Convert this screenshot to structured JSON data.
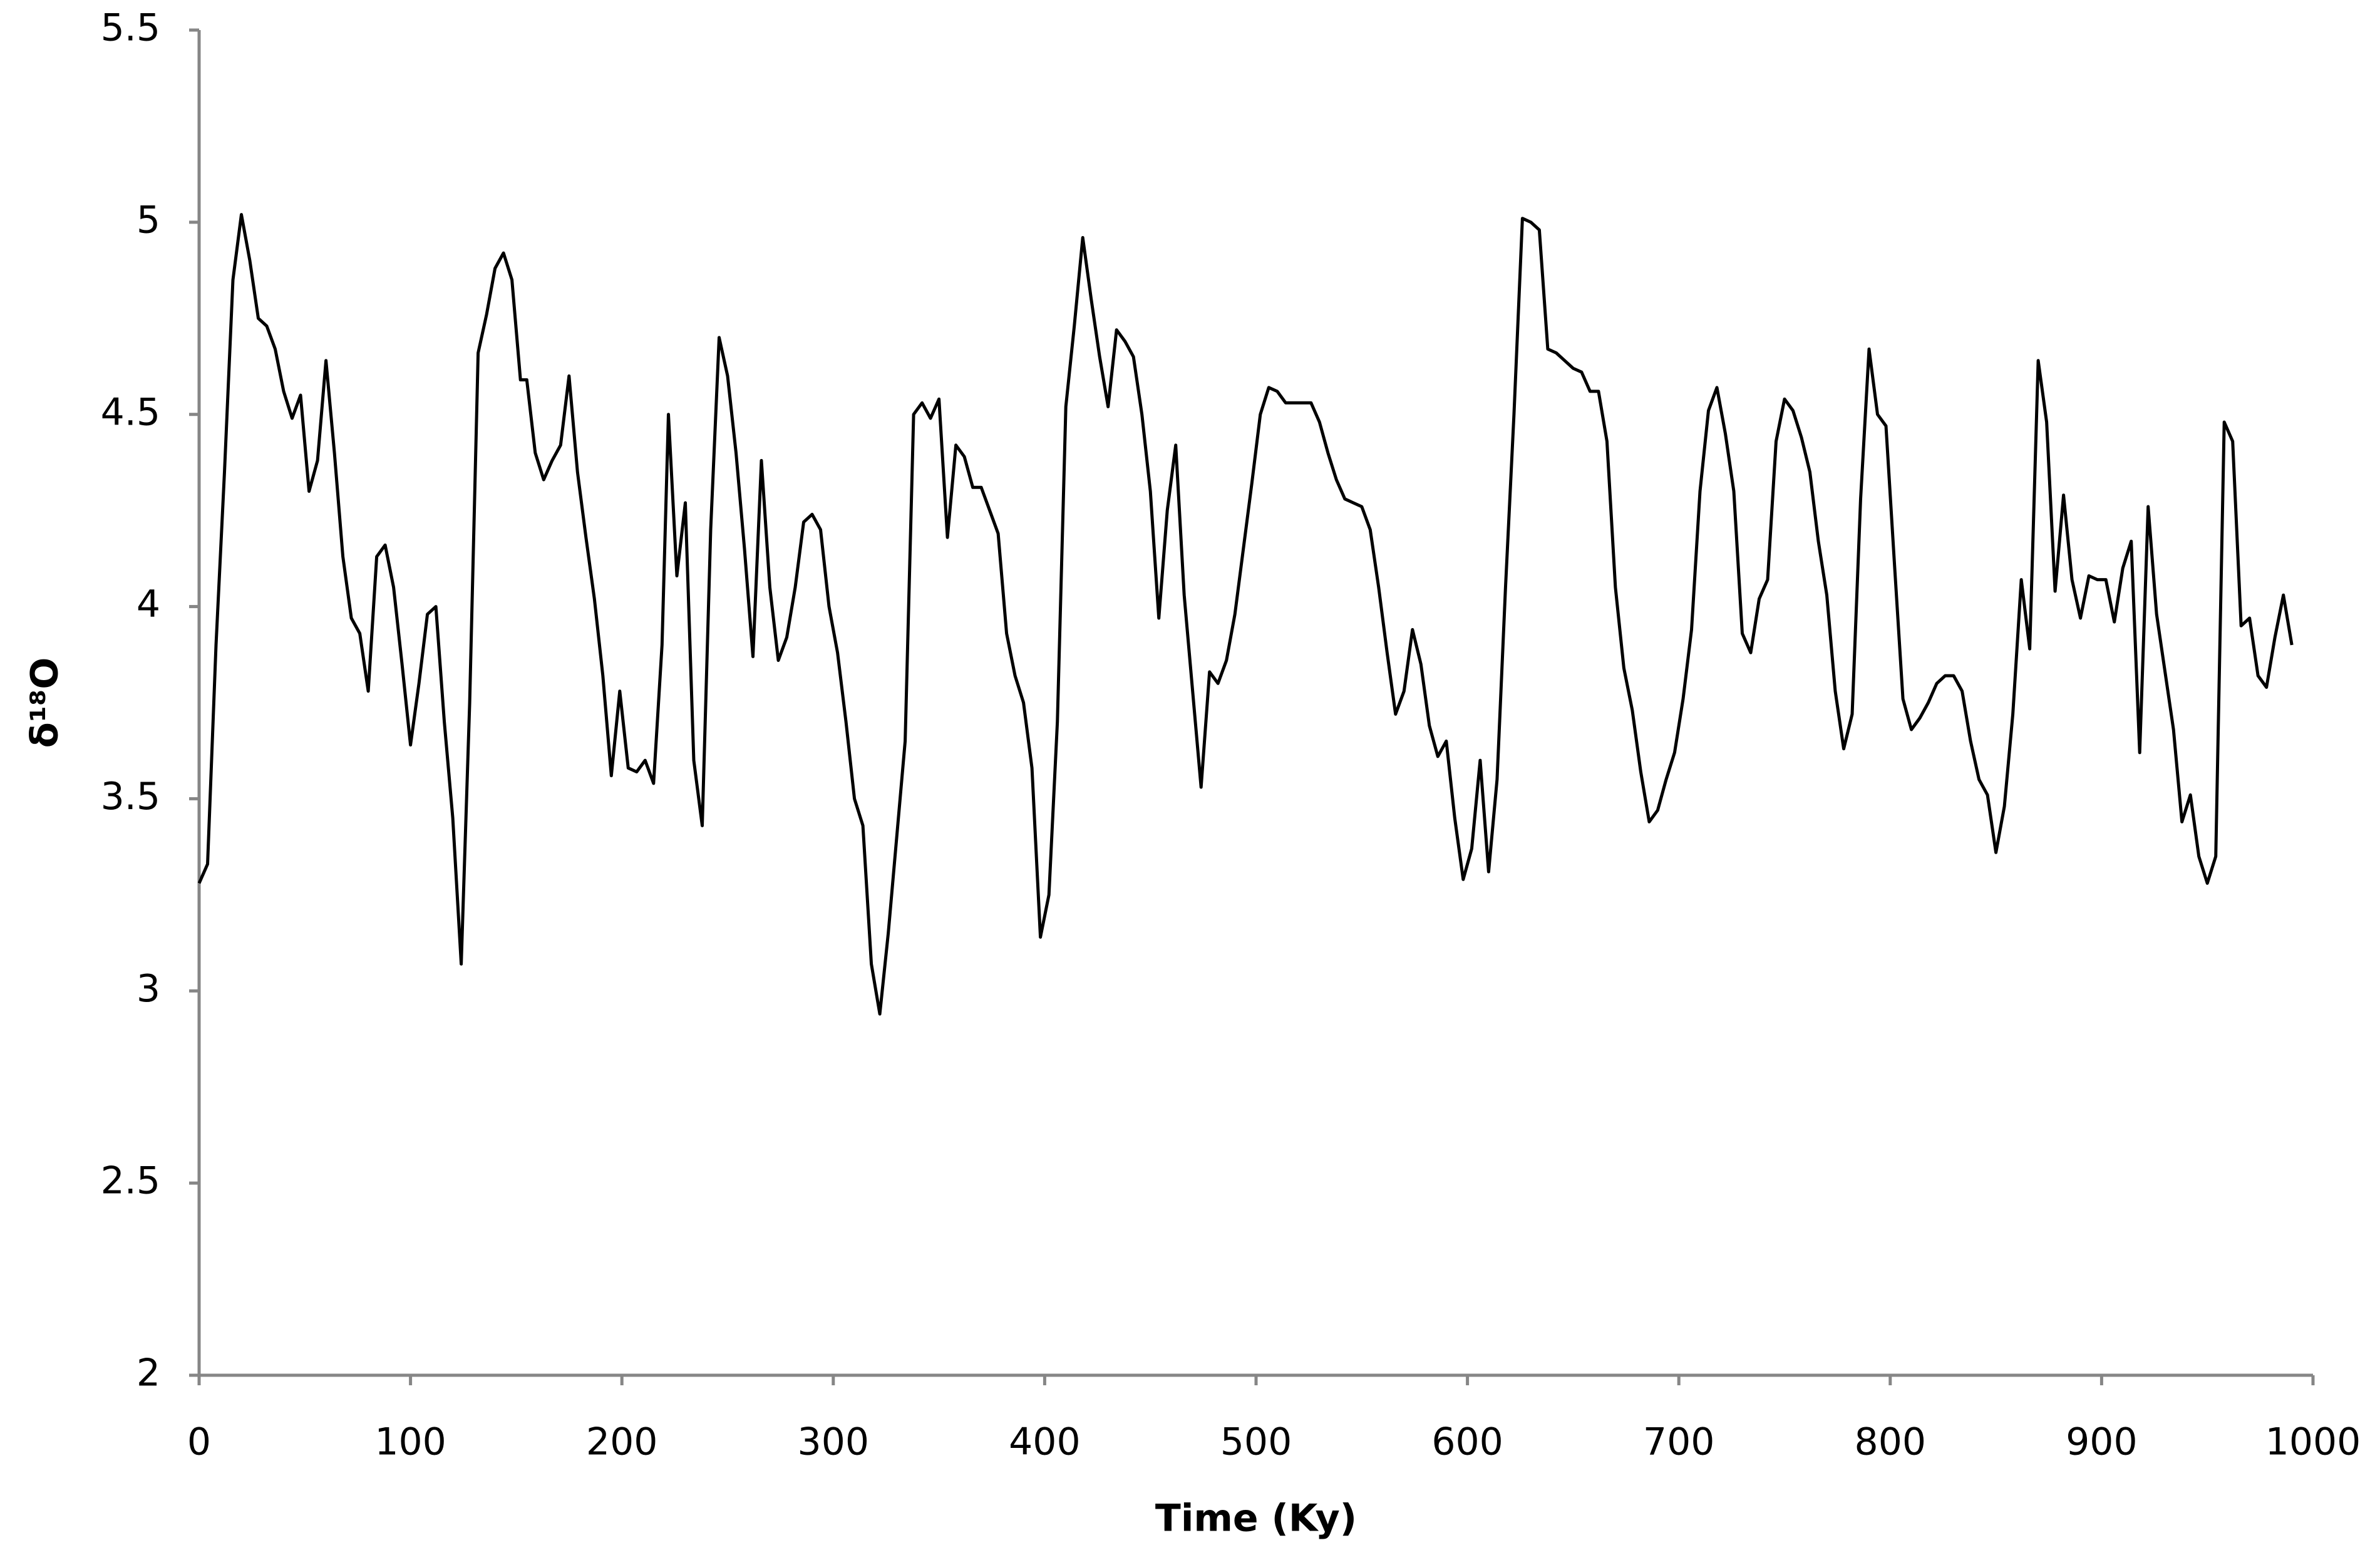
{
  "chart_data": {
    "type": "line",
    "xlabel": "Time (Ky)",
    "ylabel": "δ¹⁸O",
    "color": "#000000",
    "grid": false,
    "xlim": [
      0,
      1000
    ],
    "xticks": [
      0,
      100,
      200,
      300,
      400,
      500,
      600,
      700,
      800,
      900,
      1000
    ],
    "ylim": [
      2,
      5.5
    ],
    "yticks": [
      2,
      2.5,
      3,
      3.5,
      4,
      4.5,
      5,
      5.5
    ],
    "x": [
      0,
      4,
      8,
      12,
      16,
      20,
      24,
      28,
      32,
      36,
      40,
      44,
      48,
      52,
      56,
      60,
      64,
      68,
      72,
      76,
      80,
      84,
      88,
      92,
      96,
      100,
      104,
      108,
      112,
      116,
      120,
      124,
      128,
      132,
      136,
      140,
      144,
      148,
      152,
      155,
      159,
      163,
      167,
      171,
      175,
      179,
      183,
      187,
      191,
      195,
      199,
      203,
      207,
      211,
      215,
      219,
      222,
      226,
      230,
      234,
      238,
      242,
      246,
      250,
      254,
      258,
      262,
      266,
      270,
      274,
      278,
      282,
      286,
      290,
      294,
      298,
      302,
      306,
      310,
      314,
      318,
      322,
      326,
      330,
      334,
      338,
      342,
      346,
      350,
      354,
      358,
      362,
      366,
      370,
      374,
      378,
      382,
      386,
      390,
      394,
      398,
      402,
      406,
      410,
      414,
      418,
      422,
      426,
      430,
      434,
      438,
      442,
      446,
      450,
      454,
      458,
      462,
      466,
      470,
      474,
      478,
      482,
      486,
      490,
      494,
      498,
      502,
      506,
      510,
      514,
      518,
      522,
      526,
      530,
      534,
      538,
      542,
      546,
      550,
      554,
      558,
      562,
      566,
      570,
      574,
      578,
      582,
      586,
      590,
      594,
      598,
      602,
      606,
      610,
      614,
      618,
      622,
      626,
      630,
      634,
      638,
      642,
      646,
      650,
      654,
      658,
      662,
      666,
      670,
      674,
      678,
      682,
      686,
      690,
      694,
      698,
      702,
      706,
      710,
      714,
      718,
      722,
      726,
      730,
      734,
      738,
      742,
      746,
      750,
      754,
      758,
      762,
      766,
      770,
      774,
      778,
      782,
      786,
      790,
      794,
      798,
      802,
      806,
      810,
      814,
      818,
      822,
      826,
      830,
      834,
      838,
      842,
      846,
      850,
      854,
      858,
      862,
      866,
      870,
      874,
      878,
      882,
      886,
      890,
      894,
      898,
      902,
      906,
      910,
      914,
      918,
      922,
      926,
      930,
      934,
      938,
      942,
      946,
      950,
      954,
      958,
      962,
      966,
      970,
      974,
      978,
      982,
      986,
      990
    ],
    "values": [
      3.28,
      3.33,
      3.9,
      4.35,
      4.85,
      5.02,
      4.9,
      4.75,
      4.73,
      4.67,
      4.56,
      4.49,
      4.55,
      4.3,
      4.38,
      4.64,
      4.4,
      4.13,
      3.97,
      3.93,
      3.78,
      4.13,
      4.16,
      4.05,
      3.85,
      3.64,
      3.8,
      3.98,
      4.0,
      3.7,
      3.45,
      3.07,
      3.75,
      4.66,
      4.76,
      4.88,
      4.92,
      4.85,
      4.59,
      4.59,
      4.4,
      4.33,
      4.38,
      4.42,
      4.6,
      4.35,
      4.18,
      4.02,
      3.82,
      3.56,
      3.78,
      3.58,
      3.57,
      3.6,
      3.54,
      3.9,
      4.5,
      4.08,
      4.27,
      3.6,
      3.43,
      4.2,
      4.7,
      4.6,
      4.4,
      4.15,
      3.87,
      4.38,
      4.05,
      3.86,
      3.92,
      4.05,
      4.22,
      4.24,
      4.2,
      4.0,
      3.88,
      3.7,
      3.5,
      3.43,
      3.07,
      2.94,
      3.15,
      3.4,
      3.65,
      4.5,
      4.53,
      4.49,
      4.54,
      4.18,
      4.42,
      4.39,
      4.31,
      4.31,
      4.25,
      4.19,
      3.93,
      3.82,
      3.75,
      3.58,
      3.14,
      3.25,
      3.7,
      4.52,
      4.73,
      4.96,
      4.8,
      4.65,
      4.52,
      4.72,
      4.69,
      4.65,
      4.5,
      4.3,
      3.97,
      4.25,
      4.42,
      4.03,
      3.78,
      3.53,
      3.83,
      3.8,
      3.86,
      3.98,
      4.15,
      4.32,
      4.5,
      4.57,
      4.56,
      4.53,
      4.53,
      4.53,
      4.53,
      4.48,
      4.4,
      4.33,
      4.28,
      4.27,
      4.26,
      4.2,
      4.05,
      3.88,
      3.72,
      3.78,
      3.94,
      3.85,
      3.69,
      3.61,
      3.65,
      3.45,
      3.29,
      3.37,
      3.6,
      3.31,
      3.55,
      4.05,
      4.5,
      5.01,
      5.0,
      4.98,
      4.67,
      4.66,
      4.64,
      4.62,
      4.61,
      4.56,
      4.56,
      4.43,
      4.05,
      3.84,
      3.73,
      3.57,
      3.44,
      3.47,
      3.55,
      3.62,
      3.76,
      3.94,
      4.3,
      4.51,
      4.57,
      4.45,
      4.3,
      3.93,
      3.88,
      4.02,
      4.07,
      4.43,
      4.54,
      4.51,
      4.44,
      4.35,
      4.17,
      4.03,
      3.78,
      3.63,
      3.72,
      4.28,
      4.67,
      4.5,
      4.47,
      4.11,
      3.76,
      3.68,
      3.71,
      3.75,
      3.8,
      3.82,
      3.82,
      3.78,
      3.65,
      3.55,
      3.51,
      3.36,
      3.48,
      3.72,
      4.07,
      3.89,
      4.64,
      4.48,
      4.04,
      4.29,
      4.07,
      3.97,
      4.08,
      4.07,
      4.07,
      3.96,
      4.1,
      4.17,
      3.62,
      4.26,
      3.98,
      3.83,
      3.68,
      3.44,
      3.51,
      3.35,
      3.28,
      3.35,
      4.48,
      4.43,
      3.95,
      3.97,
      3.82,
      3.79,
      3.92,
      4.03,
      3.9
    ]
  }
}
